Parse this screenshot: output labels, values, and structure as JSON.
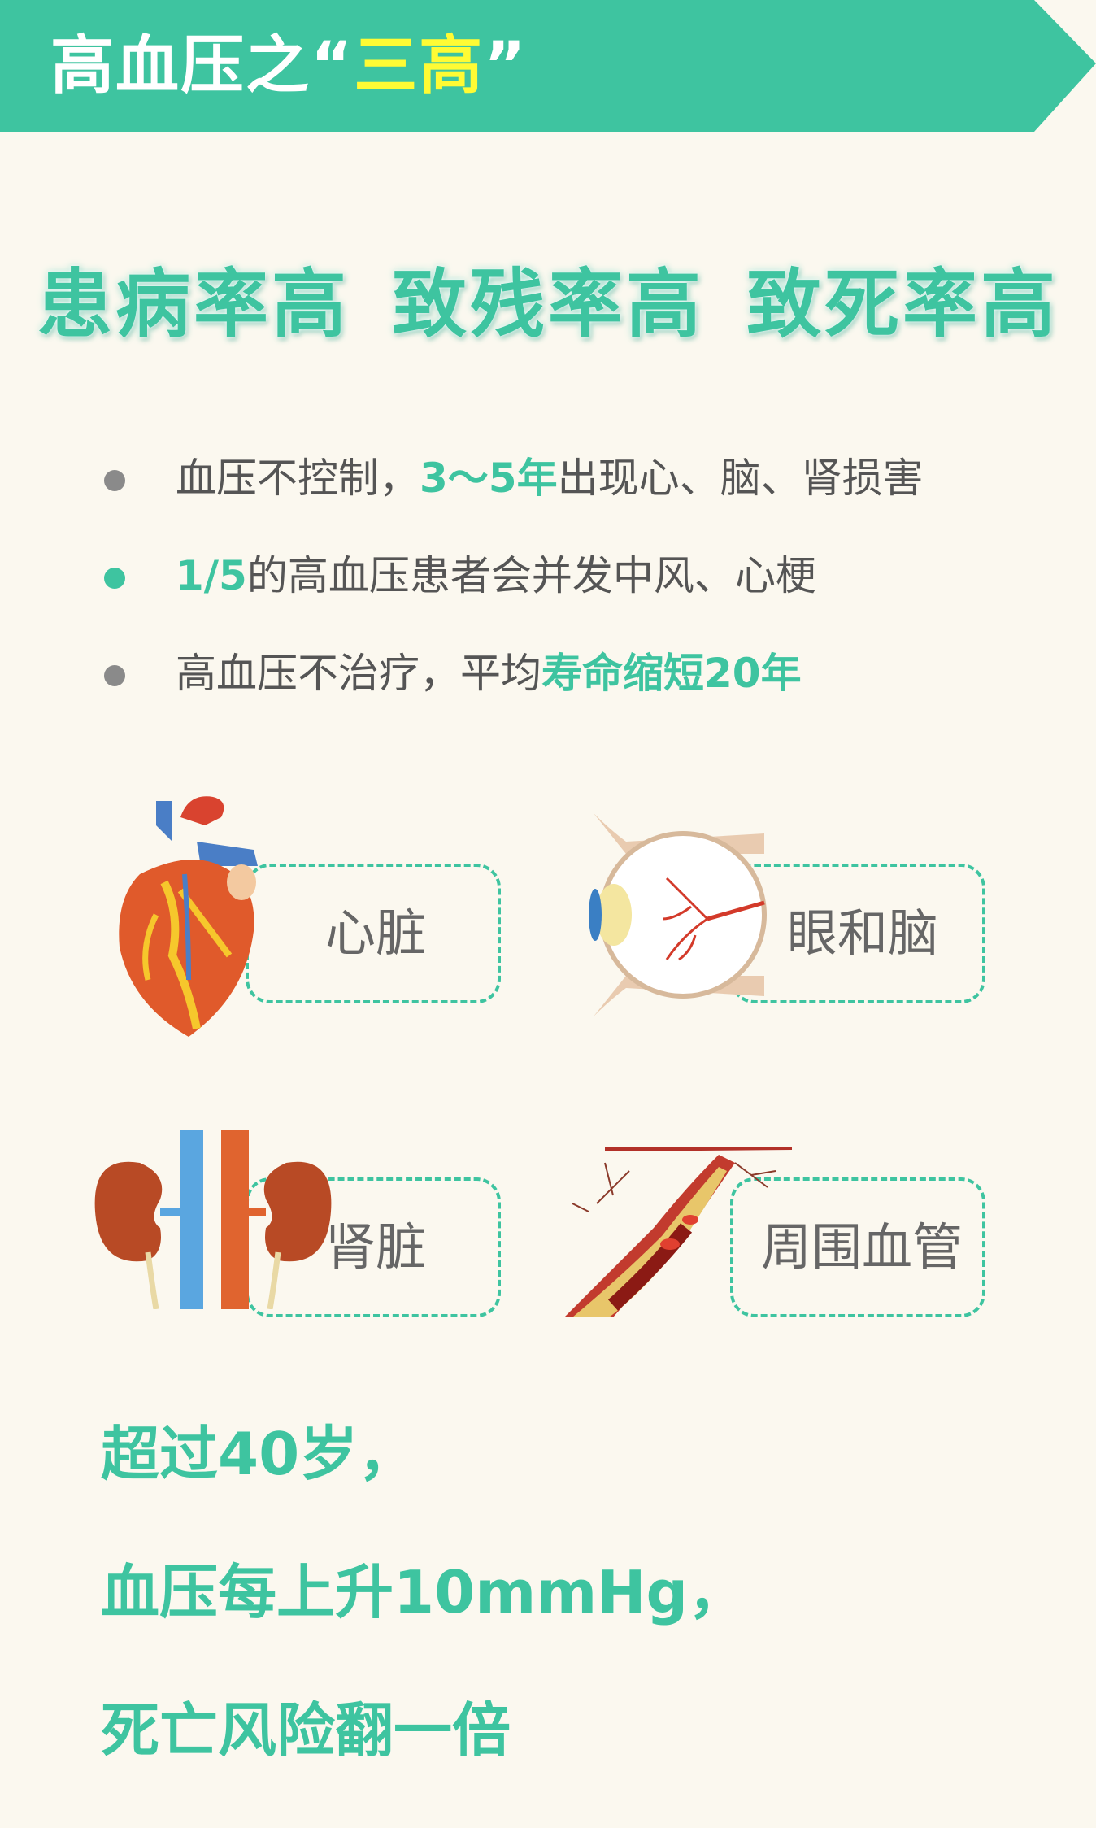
{
  "banner": {
    "title_prefix": "高血压之",
    "quote_open": "“",
    "title_highlight": "三高",
    "quote_close": "”",
    "color": "#3ec4a0",
    "highlight_color": "#fffb34"
  },
  "headline": [
    "患病率高",
    "致残率高",
    "致死率高"
  ],
  "bullets": [
    {
      "pre": "血压不控制，",
      "highlight": "3～5年",
      "post": "出现心、脑、肾损害",
      "dot": "gray"
    },
    {
      "pre": "",
      "highlight": "1/5",
      "post": "的高血压患者会并发中风、心梗",
      "dot": "green"
    },
    {
      "pre": "高血压不治疗，平均",
      "highlight": "寿命缩短20年",
      "post": "",
      "dot": "gray"
    }
  ],
  "organs": [
    {
      "label": "心脏",
      "icon": "heart-icon"
    },
    {
      "label": "眼和脑",
      "icon": "eye-icon"
    },
    {
      "label": "肾脏",
      "icon": "kidney-icon"
    },
    {
      "label": "周围血管",
      "icon": "blood-vessel-icon"
    }
  ],
  "closing": [
    "超过40岁，",
    "血压每上升10mmHg，",
    "死亡风险翻一倍"
  ]
}
